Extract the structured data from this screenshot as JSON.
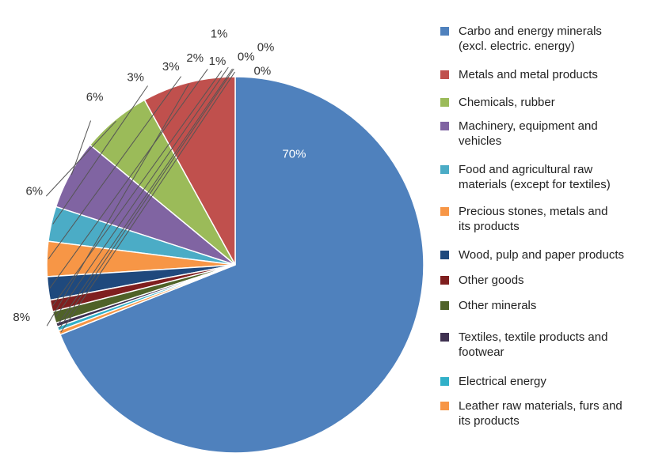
{
  "chart_data": {
    "type": "pie",
    "categories": [
      "Carbo and energy minerals\n(excl. electric. energy)",
      "Metals and metal products",
      "Chemicals, rubber",
      "Machinery, equipment and\nvehicles",
      "Food and agricultural raw\nmaterials (except for textiles)",
      "Precious stones, metals and\nits products",
      "Wood, pulp and paper products",
      "Other goods",
      "Other minerals",
      "Textiles, textile products and\nfootwear",
      "Electrical energy",
      "Leather raw materials, furs and\nits products"
    ],
    "values": [
      70,
      8,
      6,
      6,
      3,
      3,
      2,
      1,
      1,
      0,
      0,
      0
    ],
    "data_labels": [
      "70%",
      "8%",
      "6%",
      "6%",
      "3%",
      "3%",
      "2%",
      "1%",
      "1%",
      "0%",
      "0%",
      "0%"
    ],
    "colors": [
      "#4f81bd",
      "#c0504d",
      "#9bbb59",
      "#8064a2",
      "#4bacc6",
      "#f79646",
      "#1f497d",
      "#7f1f1f",
      "#4f6228",
      "#3f3151",
      "#31b0c8",
      "#f79646"
    ],
    "legend_position": "right"
  }
}
